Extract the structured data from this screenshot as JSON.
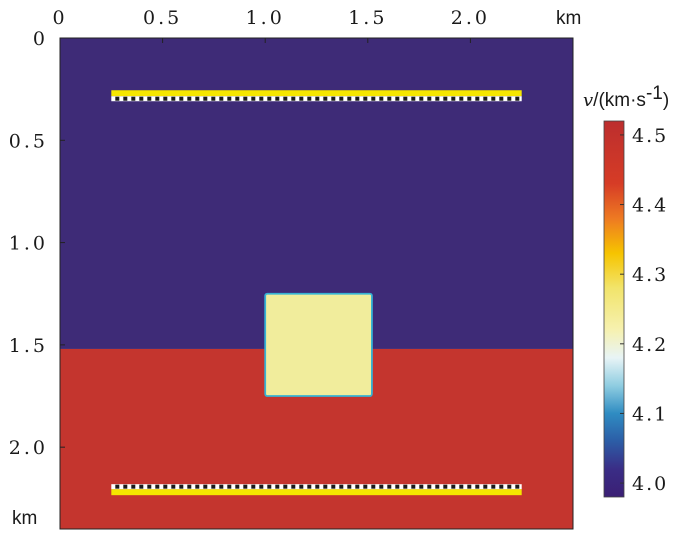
{
  "chart_data": {
    "type": "heatmap",
    "title": "",
    "x_unit_label": "km",
    "y_unit_label": "km",
    "xlim": [
      0,
      2.5
    ],
    "ylim": [
      0,
      2.4
    ],
    "y_axis_direction": "down",
    "x_ticks": [
      0,
      0.5,
      1.0,
      1.5,
      2.0
    ],
    "x_tick_labels": [
      "0",
      "0.5",
      "1.0",
      "1.5",
      "2.0"
    ],
    "y_ticks": [
      0,
      0.5,
      1.0,
      1.5,
      2.0
    ],
    "y_tick_labels": [
      "0",
      "0.5",
      "1.0",
      "1.5",
      "2.0"
    ],
    "colorbar": {
      "label_var": "v",
      "label_unit": "/(km·s",
      "label_exp": "-1",
      "label_close": ")",
      "range": [
        3.98,
        4.52
      ],
      "ticks": [
        4.0,
        4.1,
        4.2,
        4.3,
        4.4,
        4.5
      ],
      "tick_labels": [
        "4.0",
        "4.1",
        "4.2",
        "4.3",
        "4.4",
        "4.5"
      ],
      "colormap": [
        {
          "v": 3.98,
          "color": "#3b1f74"
        },
        {
          "v": 4.02,
          "color": "#3a2d86"
        },
        {
          "v": 4.06,
          "color": "#2c5da6"
        },
        {
          "v": 4.1,
          "color": "#2f8cc2"
        },
        {
          "v": 4.14,
          "color": "#8fcde1"
        },
        {
          "v": 4.18,
          "color": "#e8f4f6"
        },
        {
          "v": 4.22,
          "color": "#f6f1b0"
        },
        {
          "v": 4.28,
          "color": "#f2e46b"
        },
        {
          "v": 4.33,
          "color": "#f6c400"
        },
        {
          "v": 4.38,
          "color": "#ee7a22"
        },
        {
          "v": 4.43,
          "color": "#d63c26"
        },
        {
          "v": 4.52,
          "color": "#bc2e2e"
        }
      ]
    },
    "regions": [
      {
        "name": "upper-layer",
        "x": [
          0,
          2.5
        ],
        "y": [
          0,
          1.52
        ],
        "v": 4.0,
        "color": "#3e2b77"
      },
      {
        "name": "lower-layer",
        "x": [
          0,
          2.5
        ],
        "y": [
          1.52,
          2.4
        ],
        "v": 4.5,
        "color": "#c4352e"
      },
      {
        "name": "square-anomaly",
        "x": [
          1.0,
          1.52
        ],
        "y": [
          1.25,
          1.75
        ],
        "v": 4.23,
        "color": "#f1ed9c",
        "edge_color": "#37b3d4"
      }
    ],
    "lines": [
      {
        "name": "top-line",
        "x": [
          0.25,
          2.25
        ],
        "y": 0.27,
        "color": "#f5e600",
        "marker_side": "below"
      },
      {
        "name": "bottom-line",
        "x": [
          0.25,
          2.25
        ],
        "y": 2.22,
        "color": "#f5e600",
        "marker_side": "above"
      }
    ],
    "grid": false,
    "legend": "none"
  }
}
